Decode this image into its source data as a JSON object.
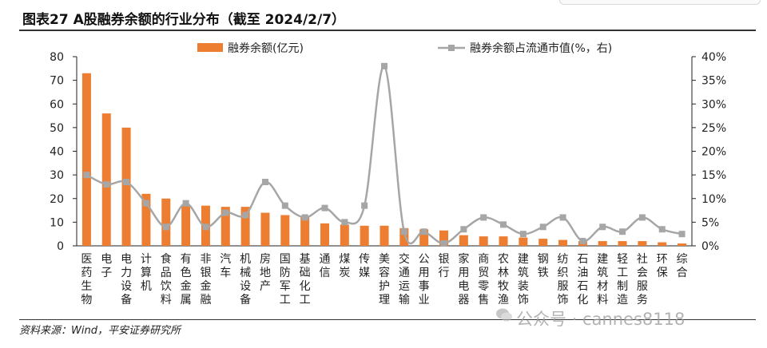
{
  "title": "图表27    A股融券余额的行业分布（截至 2024/2/7）",
  "source": "资料来源：Wind，平安证券研究所",
  "watermark": "公众号 · cannes8118",
  "colors": {
    "bar": "#ED7D31",
    "line": "#A6A6A6",
    "axis": "#222222"
  },
  "chart_data": {
    "type": "bar",
    "title": "A股融券余额的行业分布（截至 2024/2/7）",
    "legend_position": "top",
    "categories": [
      "医药生物",
      "电子",
      "电力设备",
      "计算机",
      "食品饮料",
      "有色金属",
      "非银金融",
      "汽车",
      "机械设备",
      "房地产",
      "国防军工",
      "基础化工",
      "通信",
      "煤炭",
      "传媒",
      "美容护理",
      "交通运输",
      "公用事业",
      "银行",
      "家用电器",
      "商贸零售",
      "农林牧渔",
      "建筑装饰",
      "钢铁",
      "纺织服饰",
      "石油石化",
      "建筑材料",
      "轻工制造",
      "社会服务",
      "环保",
      "综合"
    ],
    "series": [
      {
        "name": "融券余额(亿元)",
        "type": "bar",
        "axis": "left",
        "values": [
          73,
          56,
          50,
          22,
          20,
          17,
          17,
          16.5,
          16.5,
          14,
          13,
          12,
          9.5,
          9,
          8.5,
          8.5,
          7.5,
          7,
          6.5,
          4.5,
          4,
          4,
          3.5,
          3,
          2.5,
          2,
          2,
          2,
          2,
          1.5,
          1
        ]
      },
      {
        "name": "融券余额占流通市值(%，右)",
        "type": "line",
        "axis": "right",
        "values": [
          15,
          13,
          13.5,
          9,
          4,
          9,
          4,
          7,
          6.5,
          13.5,
          8.5,
          6,
          8,
          5,
          8.5,
          38,
          3,
          3,
          0.5,
          3.5,
          6,
          4.5,
          2.5,
          4,
          6,
          1,
          4,
          3,
          6,
          3.5,
          2.5
        ]
      }
    ],
    "y_left": {
      "min": 0,
      "max": 80,
      "ticks": [
        "0",
        "10",
        "20",
        "30",
        "40",
        "50",
        "60",
        "70",
        "80"
      ]
    },
    "y_right": {
      "min": 0,
      "max": 40,
      "ticks": [
        "0%",
        "5%",
        "10%",
        "15%",
        "20%",
        "25%",
        "30%",
        "35%",
        "40%"
      ]
    },
    "grid": false
  }
}
